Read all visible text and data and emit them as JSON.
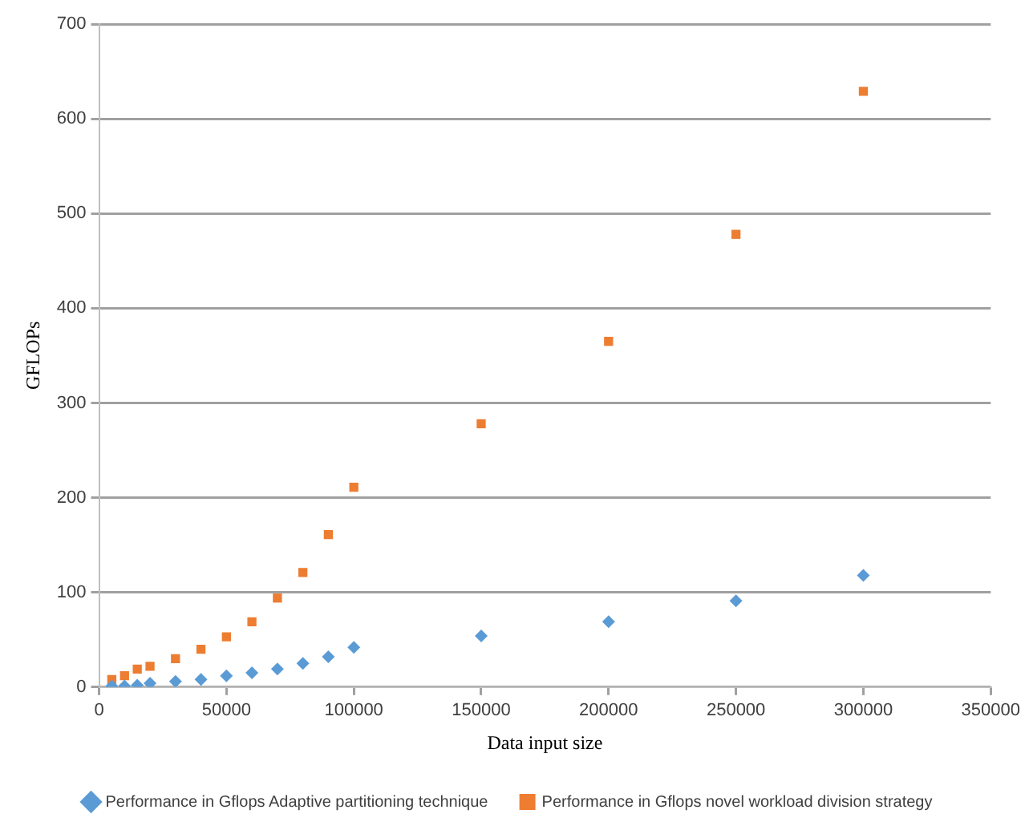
{
  "chart_data": {
    "type": "scatter",
    "xlabel": "Data input size",
    "ylabel": "GFLOPs",
    "xlim": [
      0,
      350000
    ],
    "xticks": [
      0,
      50000,
      100000,
      150000,
      200000,
      250000,
      300000,
      350000
    ],
    "ylim": [
      0,
      700
    ],
    "yticks": [
      0,
      100,
      200,
      300,
      400,
      500,
      600,
      700
    ],
    "grid": "y",
    "legend": "bottom",
    "series": [
      {
        "name": "Performance in Gflops Adaptive partitioning technique",
        "color": "#5b9bd5",
        "marker": "diamond",
        "x": [
          5000,
          10000,
          15000,
          20000,
          30000,
          40000,
          50000,
          60000,
          70000,
          80000,
          90000,
          100000,
          150000,
          200000,
          250000,
          300000
        ],
        "values": [
          1,
          1,
          2,
          4,
          6,
          8,
          12,
          15,
          19,
          25,
          32,
          42,
          54,
          69,
          91,
          118
        ]
      },
      {
        "name": "Performance in Gflops novel workload division strategy",
        "color": "#ed7d31",
        "marker": "square",
        "x": [
          5000,
          10000,
          15000,
          20000,
          30000,
          40000,
          50000,
          60000,
          70000,
          80000,
          90000,
          100000,
          150000,
          200000,
          250000,
          300000
        ],
        "values": [
          8,
          12,
          19,
          22,
          30,
          40,
          53,
          69,
          94,
          121,
          161,
          211,
          278,
          365,
          478,
          629
        ]
      }
    ]
  }
}
